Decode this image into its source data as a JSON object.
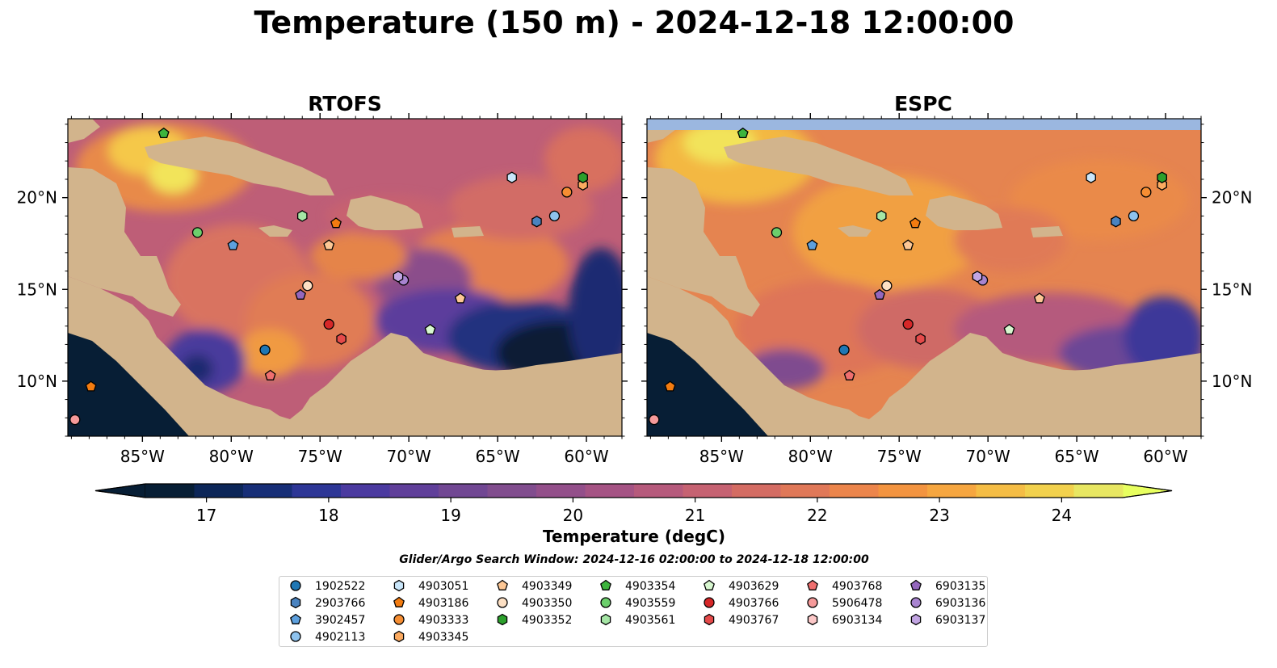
{
  "title": "Temperature (150 m) - 2024-12-18 12:00:00",
  "panels": [
    {
      "name": "RTOFS"
    },
    {
      "name": "ESPC"
    }
  ],
  "x_ticks": [
    {
      "lon": -85,
      "label": "85°W"
    },
    {
      "lon": -80,
      "label": "80°W"
    },
    {
      "lon": -75,
      "label": "75°W"
    },
    {
      "lon": -70,
      "label": "70°W"
    },
    {
      "lon": -65,
      "label": "65°W"
    },
    {
      "lon": -60,
      "label": "60°W"
    }
  ],
  "y_ticks": [
    {
      "lat": 10,
      "label": "10°N"
    },
    {
      "lat": 15,
      "label": "15°N"
    },
    {
      "lat": 20,
      "label": "20°N"
    }
  ],
  "colorbar": {
    "label": "Temperature (degC)",
    "min": 16.5,
    "max": 24.5,
    "step": 0.5,
    "ticks": [
      {
        "value": 17,
        "label": "17"
      },
      {
        "value": 18,
        "label": "18"
      },
      {
        "value": 19,
        "label": "19"
      },
      {
        "value": 20,
        "label": "20"
      },
      {
        "value": 21,
        "label": "21"
      },
      {
        "value": 22,
        "label": "22"
      },
      {
        "value": 23,
        "label": "23"
      },
      {
        "value": 24,
        "label": "24"
      }
    ],
    "colors": [
      "#071e35",
      "#0c2658",
      "#172e77",
      "#2d3696",
      "#4b3aa0",
      "#603f9a",
      "#714793",
      "#814d8e",
      "#934f8a",
      "#a55384",
      "#b65a7c",
      "#c66272",
      "#d46c63",
      "#e07858",
      "#ec854b",
      "#f39440",
      "#f6a640",
      "#f5bd45",
      "#f2d14d",
      "#e8e762"
    ],
    "extend_low_color": "#071e35",
    "extend_high_color": "#e8ff60"
  },
  "search_window": "Glider/Argo Search Window: 2024-12-16 02:00:00 to 2024-12-18 12:00:00",
  "legend": [
    [
      {
        "id": "1902522",
        "color": "#1f77b4",
        "marker": "circle"
      },
      {
        "id": "2903766",
        "color": "#4a83c0",
        "marker": "hexagon"
      },
      {
        "id": "3902457",
        "color": "#5da0de",
        "marker": "pentagon"
      },
      {
        "id": "4902113",
        "color": "#8ec3ee",
        "marker": "circle"
      }
    ],
    [
      {
        "id": "4903051",
        "color": "#c9e6fa",
        "marker": "hexagon"
      },
      {
        "id": "4903186",
        "color": "#f37c10",
        "marker": "pentagon"
      },
      {
        "id": "4903333",
        "color": "#f68e33",
        "marker": "circle"
      },
      {
        "id": "4903345",
        "color": "#fbaa60",
        "marker": "hexagon"
      }
    ],
    [
      {
        "id": "4903349",
        "color": "#fdc795",
        "marker": "pentagon"
      },
      {
        "id": "4903350",
        "color": "#fde0c4",
        "marker": "circle"
      },
      {
        "id": "4903352",
        "color": "#2ca02c",
        "marker": "hexagon"
      }
    ],
    [
      {
        "id": "4903354",
        "color": "#3db43d",
        "marker": "pentagon"
      },
      {
        "id": "4903559",
        "color": "#6ccf6c",
        "marker": "circle"
      },
      {
        "id": "4903561",
        "color": "#a5e6a5",
        "marker": "hexagon"
      }
    ],
    [
      {
        "id": "4903629",
        "color": "#d8f7d0",
        "marker": "pentagon"
      },
      {
        "id": "4903766",
        "color": "#d62728",
        "marker": "circle"
      },
      {
        "id": "4903767",
        "color": "#e54a4a",
        "marker": "hexagon"
      }
    ],
    [
      {
        "id": "4903768",
        "color": "#ef6f6f",
        "marker": "pentagon"
      },
      {
        "id": "5906478",
        "color": "#f59a9a",
        "marker": "circle"
      },
      {
        "id": "6903134",
        "color": "#fcc8c8",
        "marker": "hexagon"
      }
    ],
    [
      {
        "id": "6903135",
        "color": "#9467bd",
        "marker": "pentagon"
      },
      {
        "id": "6903136",
        "color": "#a884d0",
        "marker": "circle"
      },
      {
        "id": "6903137",
        "color": "#c2a5e3",
        "marker": "hexagon"
      }
    ]
  ],
  "chart_data": {
    "type": "heatmap",
    "units": "degC",
    "xlim": [
      -89.2,
      -58.0
    ],
    "ylim": [
      7.0,
      24.3
    ],
    "markers": [
      {
        "id": "4903354",
        "lon": -83.8,
        "lat": 23.5
      },
      {
        "id": "4903559",
        "lon": -81.9,
        "lat": 18.1
      },
      {
        "id": "3902457",
        "lon": -79.9,
        "lat": 17.4
      },
      {
        "id": "4903561",
        "lon": -76.0,
        "lat": 19.0
      },
      {
        "id": "4903349",
        "lon": -74.5,
        "lat": 17.4
      },
      {
        "id": "4903350",
        "lon": -75.7,
        "lat": 15.2
      },
      {
        "id": "6903135",
        "lon": -76.1,
        "lat": 14.7
      },
      {
        "id": "4903766",
        "lon": -74.5,
        "lat": 13.1
      },
      {
        "id": "4903767",
        "lon": -73.8,
        "lat": 12.3
      },
      {
        "id": "1902522",
        "lon": -78.1,
        "lat": 11.7
      },
      {
        "id": "4903768",
        "lon": -77.8,
        "lat": 10.3
      },
      {
        "id": "6903136",
        "lon": -70.3,
        "lat": 15.5
      },
      {
        "id": "6903137",
        "lon": -70.6,
        "lat": 15.7
      },
      {
        "id": "4903629",
        "lon": -68.8,
        "lat": 12.8
      },
      {
        "id": "4903349",
        "lon": -67.1,
        "lat": 14.5
      },
      {
        "id": "4903051",
        "lon": -64.2,
        "lat": 21.1
      },
      {
        "id": "2903766",
        "lon": -62.8,
        "lat": 18.7
      },
      {
        "id": "4902113",
        "lon": -61.8,
        "lat": 19.0
      },
      {
        "id": "4903333",
        "lon": -61.1,
        "lat": 20.3
      },
      {
        "id": "4903345",
        "lon": -60.2,
        "lat": 20.7
      },
      {
        "id": "4903352",
        "lon": -60.2,
        "lat": 21.1
      },
      {
        "id": "4903186",
        "lon": -87.9,
        "lat": 9.7
      },
      {
        "id": "5906478",
        "lon": -88.8,
        "lat": 7.9
      },
      {
        "id": "4903186",
        "lon": -74.1,
        "lat": 18.6
      }
    ]
  }
}
